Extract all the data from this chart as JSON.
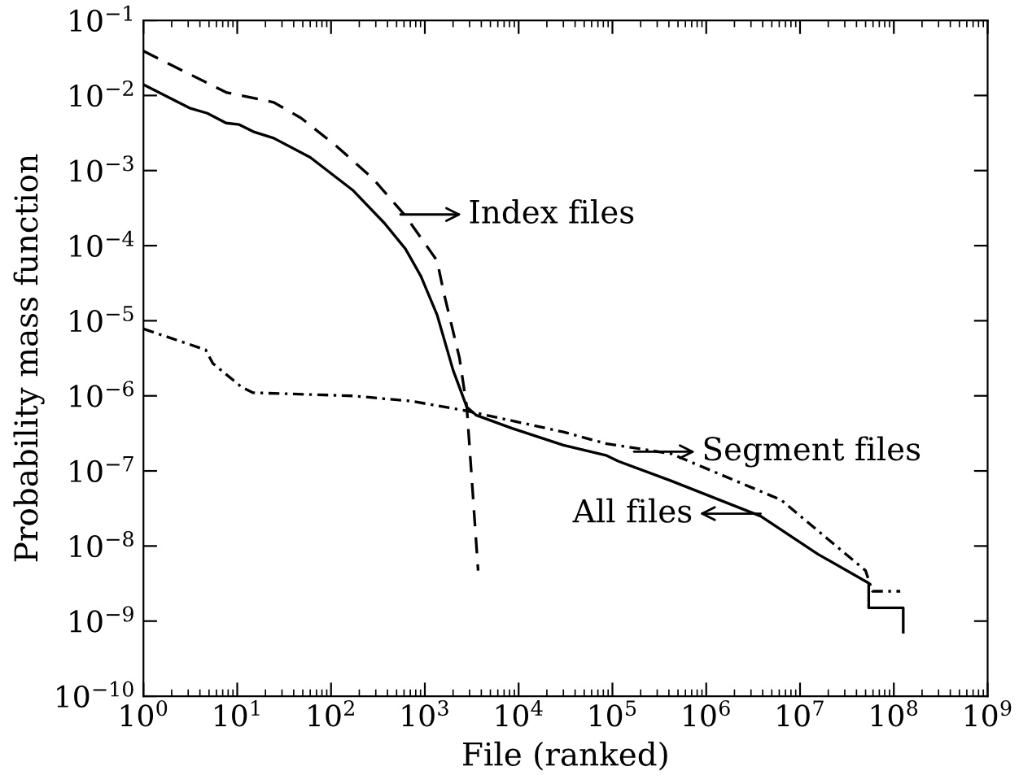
{
  "chart_data": {
    "type": "line",
    "xlabel": "File (ranked)",
    "ylabel": "Probability mass function",
    "log": "xy",
    "grid": false,
    "legend": false,
    "xlim": [
      1,
      1000000000
    ],
    "ylim": [
      1e-10,
      0.1
    ],
    "xticks": [
      {
        "value": 1,
        "label": "10$^{0}$"
      },
      {
        "value": 10,
        "label": "10$^{1}$"
      },
      {
        "value": 100,
        "label": "10$^{2}$"
      },
      {
        "value": 1000,
        "label": "10$^{3}$"
      },
      {
        "value": 10000,
        "label": "10$^{4}$"
      },
      {
        "value": 100000,
        "label": "10$^{5}$"
      },
      {
        "value": 1000000,
        "label": "10$^{6}$"
      },
      {
        "value": 10000000,
        "label": "10$^{7}$"
      },
      {
        "value": 100000000,
        "label": "10$^{8}$"
      },
      {
        "value": 1000000000,
        "label": "10$^{9}$"
      }
    ],
    "yticks": [
      {
        "value": 1e-10,
        "label": "10$^{−10}$"
      },
      {
        "value": 1e-09,
        "label": "10$^{−9}$"
      },
      {
        "value": 1e-08,
        "label": "10$^{−8}$"
      },
      {
        "value": 1e-07,
        "label": "10$^{−7}$"
      },
      {
        "value": 1e-06,
        "label": "10$^{−6}$"
      },
      {
        "value": 1e-05,
        "label": "10$^{−5}$"
      },
      {
        "value": 0.0001,
        "label": "10$^{−4}$"
      },
      {
        "value": 0.001,
        "label": "10$^{−3}$"
      },
      {
        "value": 0.01,
        "label": "10$^{−2}$"
      },
      {
        "value": 0.1,
        "label": "10$^{−1}$"
      }
    ],
    "series": [
      {
        "color": "#000000",
        "line_style": "solid",
        "x": [
          1,
          3.1,
          4.8,
          7.6,
          10.5,
          14.8,
          24.5,
          60,
          170,
          370,
          620,
          910,
          1350,
          2000,
          2800,
          3550,
          8500,
          30000,
          87000,
          115000,
          420000,
          3800000,
          15500000,
          54000000,
          54000000,
          126000000,
          126000000
        ],
        "values": [
          0.014,
          0.0068,
          0.0058,
          0.0043,
          0.0041,
          0.0033,
          0.0027,
          0.0015,
          0.00055,
          0.0002,
          9.1e-05,
          3.9e-05,
          1.2e-05,
          2.2e-06,
          7.1e-07,
          5.5e-07,
          3.7e-07,
          2.2e-07,
          1.6e-07,
          1.35e-07,
          7.4e-08,
          2.5e-08,
          7.8e-09,
          3.2e-09,
          1.5e-09,
          1.5e-09,
          7.1e-10
        ]
      },
      {
        "color": "#000000",
        "line_style": "dashed",
        "x": [
          1,
          7.6,
          24.5,
          48,
          115,
          280,
          620,
          1350,
          1600,
          2340,
          2800,
          3160,
          3700
        ],
        "values": [
          0.039,
          0.011,
          0.0081,
          0.005,
          0.0021,
          0.00078,
          0.00025,
          6.3e-05,
          2.3e-05,
          3.2e-06,
          7.1e-07,
          8.1e-08,
          4.7e-09
        ]
      },
      {
        "color": "#000000",
        "line_style": "dashdot",
        "x": [
          1,
          4.6,
          5.5,
          11.2,
          14.8,
          170,
          720,
          2800,
          30000,
          87000,
          420000,
          6300000,
          50000000,
          59000000,
          117000000
        ],
        "values": [
          7.8e-06,
          4.1e-06,
          2.7e-06,
          1.3e-06,
          1.1e-06,
          1e-06,
          8.5e-07,
          6.3e-07,
          3.3e-07,
          2.3e-07,
          1.7e-07,
          4.1e-08,
          4.7e-09,
          2.5e-09,
          2.5e-09
        ]
      }
    ],
    "annotations": [
      {
        "text": "Index files",
        "x": 550,
        "y": 0.00026
      },
      {
        "text": "Segment files",
        "x": 170000,
        "y": 1.8e-07
      },
      {
        "text": "All files",
        "x": 3800000,
        "y": 2.7e-08
      }
    ]
  }
}
